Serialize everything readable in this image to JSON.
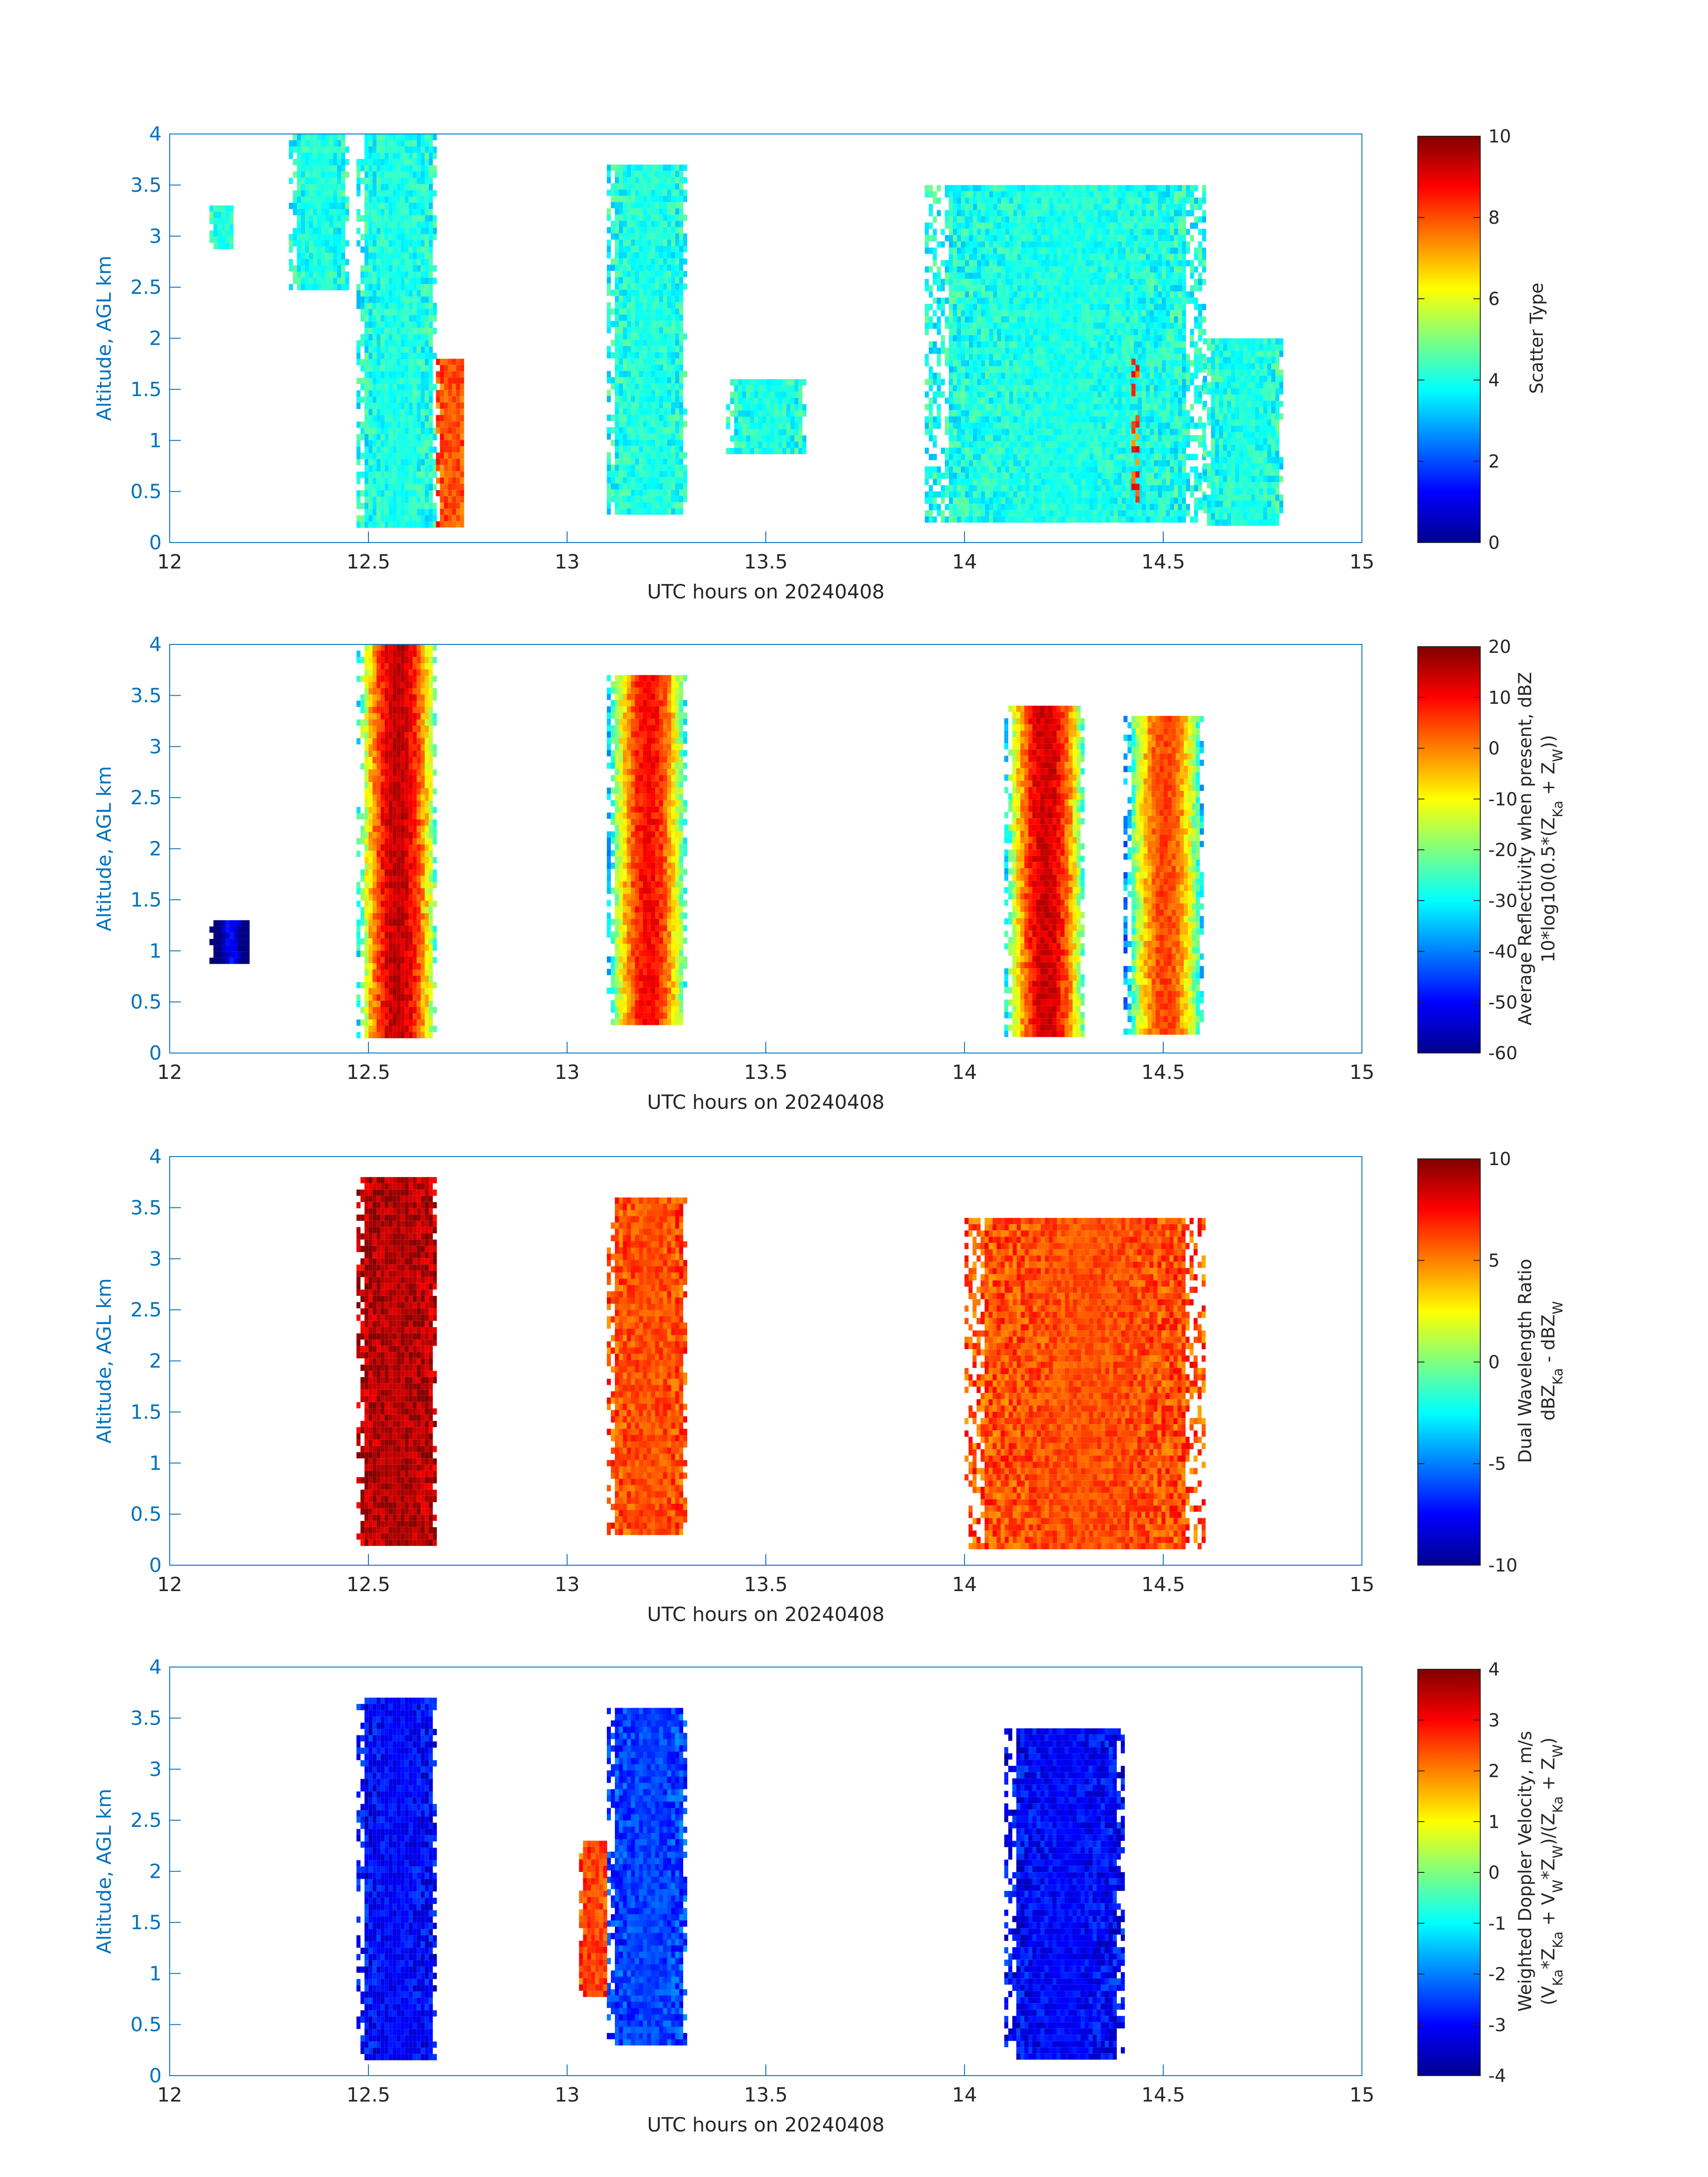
{
  "figure": {
    "cb_ticks_note_colormap": "jet",
    "panels": [
      {
        "id": "scatter-type",
        "ylabel": "Altitude, AGL km",
        "xlabel": "UTC hours on 20240408",
        "cb_label_lines": [
          "Scatter Type"
        ],
        "cb_ticks": [
          "0",
          "2",
          "4",
          "6",
          "8",
          "10"
        ],
        "cb_range": [
          0,
          10
        ]
      },
      {
        "id": "reflectivity",
        "ylabel": "Altitude, AGL km",
        "xlabel": "UTC hours on 20240408",
        "cb_label_lines": [
          "Average Reflectivity when present, dBZ",
          "10*log10(0.5*(Z_Ka + Z_W))"
        ],
        "cb_ticks": [
          "-60",
          "-50",
          "-40",
          "-30",
          "-20",
          "-10",
          "0",
          "10",
          "20"
        ],
        "cb_range": [
          -60,
          20
        ]
      },
      {
        "id": "dwr",
        "ylabel": "Altitude, AGL km",
        "xlabel": "UTC hours on 20240408",
        "cb_label_lines": [
          "Dual Wavelength Ratio",
          "dBZ_Ka - dBZ_W"
        ],
        "cb_ticks": [
          "-10",
          "-5",
          "0",
          "5",
          "10"
        ],
        "cb_range": [
          -10,
          10
        ]
      },
      {
        "id": "doppler",
        "ylabel": "Altitude, AGL km",
        "xlabel": "UTC hours on 20240408",
        "cb_label_lines": [
          "Weighted Doppler Velocity, m/s",
          "(V_Ka*Z_Ka + V_W*Z_W)/(Z_Ka + Z_W)"
        ],
        "cb_ticks": [
          "-4",
          "-3",
          "-2",
          "-1",
          "0",
          "1",
          "2",
          "3",
          "4"
        ],
        "cb_range": [
          -4,
          4
        ]
      }
    ]
  },
  "chart_data": [
    {
      "type": "heatmap",
      "title": "",
      "xlabel": "UTC hours on 20240408",
      "ylabel": "Altitude, AGL km",
      "x_ticks": [
        "12",
        "12.5",
        "13",
        "13.5",
        "14",
        "14.5",
        "15"
      ],
      "y_ticks": [
        "0",
        "0.5",
        "1",
        "1.5",
        "2",
        "2.5",
        "3",
        "3.5",
        "4"
      ],
      "xlim": [
        12,
        15
      ],
      "ylim": [
        0,
        4
      ],
      "colorbar": {
        "label": "Scatter Type",
        "range": [
          0,
          10
        ]
      },
      "regions": [
        {
          "x": [
            12.1,
            12.16
          ],
          "y": [
            2.9,
            3.3
          ],
          "value": 4
        },
        {
          "x": [
            12.3,
            12.45
          ],
          "y": [
            2.5,
            4.0
          ],
          "value": 4
        },
        {
          "x": [
            12.47,
            12.67
          ],
          "y": [
            0.2,
            4.0
          ],
          "value": 4
        },
        {
          "x": [
            12.67,
            12.74
          ],
          "y": [
            0.2,
            1.8
          ],
          "value": 8
        },
        {
          "x": [
            13.1,
            13.3
          ],
          "y": [
            0.3,
            3.7
          ],
          "value": 4
        },
        {
          "x": [
            13.4,
            13.6
          ],
          "y": [
            0.9,
            1.6
          ],
          "value": 4
        },
        {
          "x": [
            13.9,
            14.6
          ],
          "y": [
            0.2,
            3.5
          ],
          "value": 4
        },
        {
          "x": [
            14.42,
            14.43
          ],
          "y": [
            0.4,
            1.8
          ],
          "value": 8
        },
        {
          "x": [
            14.6,
            14.8
          ],
          "y": [
            0.2,
            2.0
          ],
          "value": 4
        }
      ]
    },
    {
      "type": "heatmap",
      "title": "",
      "xlabel": "UTC hours on 20240408",
      "ylabel": "Altitude, AGL km",
      "x_ticks": [
        "12",
        "12.5",
        "13",
        "13.5",
        "14",
        "14.5",
        "15"
      ],
      "y_ticks": [
        "0",
        "0.5",
        "1",
        "1.5",
        "2",
        "2.5",
        "3",
        "3.5",
        "4"
      ],
      "xlim": [
        12,
        15
      ],
      "ylim": [
        0,
        4
      ],
      "colorbar": {
        "label": "Average Reflectivity when present, dBZ",
        "range": [
          -60,
          20
        ]
      },
      "regions": [
        {
          "x": [
            12.47,
            12.67
          ],
          "y": [
            0.2,
            4.0
          ],
          "value": 15
        },
        {
          "x": [
            13.1,
            13.3
          ],
          "y": [
            0.3,
            3.7
          ],
          "value": 10
        },
        {
          "x": [
            14.1,
            14.3
          ],
          "y": [
            0.2,
            3.4
          ],
          "value": 14
        },
        {
          "x": [
            14.4,
            14.6
          ],
          "y": [
            0.2,
            3.3
          ],
          "value": 5
        },
        {
          "x": [
            12.1,
            12.2
          ],
          "y": [
            0.9,
            1.3
          ],
          "value": -50
        }
      ]
    },
    {
      "type": "heatmap",
      "title": "",
      "xlabel": "UTC hours on 20240408",
      "ylabel": "Altitude, AGL km",
      "x_ticks": [
        "12",
        "12.5",
        "13",
        "13.5",
        "14",
        "14.5",
        "15"
      ],
      "y_ticks": [
        "0",
        "0.5",
        "1",
        "1.5",
        "2",
        "2.5",
        "3",
        "3.5",
        "4"
      ],
      "xlim": [
        12,
        15
      ],
      "ylim": [
        0,
        4
      ],
      "colorbar": {
        "label": "Dual Wavelength Ratio",
        "range": [
          -10,
          10
        ]
      },
      "regions": [
        {
          "x": [
            12.47,
            12.67
          ],
          "y": [
            0.2,
            3.8
          ],
          "value": 9
        },
        {
          "x": [
            13.1,
            13.3
          ],
          "y": [
            0.3,
            3.6
          ],
          "value": 6
        },
        {
          "x": [
            14.0,
            14.6
          ],
          "y": [
            0.2,
            3.4
          ],
          "value": 6
        }
      ]
    },
    {
      "type": "heatmap",
      "title": "",
      "xlabel": "UTC hours on 20240408",
      "ylabel": "Altitude, AGL km",
      "x_ticks": [
        "12",
        "12.5",
        "13",
        "13.5",
        "14",
        "14.5",
        "15"
      ],
      "y_ticks": [
        "0",
        "0.5",
        "1",
        "1.5",
        "2",
        "2.5",
        "3",
        "3.5",
        "4"
      ],
      "xlim": [
        12,
        15
      ],
      "ylim": [
        0,
        4
      ],
      "colorbar": {
        "label": "Weighted Doppler Velocity, m/s",
        "range": [
          -4,
          4
        ]
      },
      "regions": [
        {
          "x": [
            12.47,
            12.67
          ],
          "y": [
            0.2,
            3.7
          ],
          "value": -3
        },
        {
          "x": [
            13.1,
            13.3
          ],
          "y": [
            0.3,
            3.6
          ],
          "value": -2.5
        },
        {
          "x": [
            14.1,
            14.4
          ],
          "y": [
            0.2,
            3.4
          ],
          "value": -3
        },
        {
          "x": [
            13.03,
            13.1
          ],
          "y": [
            0.8,
            2.3
          ],
          "value": 2.5
        }
      ]
    }
  ]
}
